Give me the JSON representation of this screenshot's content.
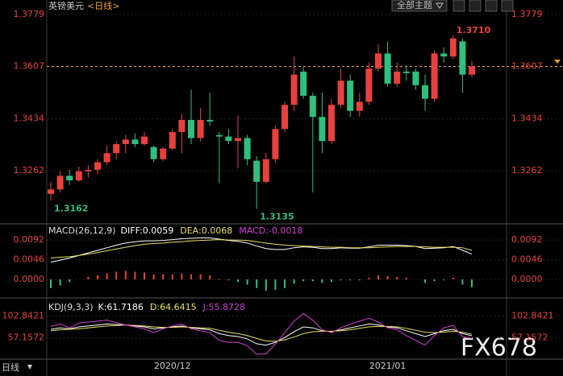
{
  "toolbar": {
    "theme_button": "全部主题",
    "period_tab": "日线"
  },
  "watermark": "FX678",
  "chart_data": [
    {
      "type": "candlestick",
      "title": "英镑美元",
      "subtitle": "<日线>",
      "categories": [
        null,
        null,
        null,
        null,
        null,
        null,
        null,
        null,
        null,
        null,
        null,
        null,
        null,
        "2020/12",
        null,
        null,
        null,
        null,
        null,
        null,
        null,
        null,
        null,
        null,
        null,
        null,
        null,
        null,
        null,
        null,
        null,
        null,
        null,
        null,
        null,
        null,
        "2021/01",
        null,
        null,
        null,
        null,
        null,
        null,
        null,
        null,
        null
      ],
      "open": [
        1.3185,
        1.32,
        1.3245,
        1.323,
        1.326,
        1.3265,
        1.329,
        1.332,
        1.335,
        1.3365,
        1.335,
        1.334,
        1.33,
        1.3335,
        1.339,
        1.343,
        1.337,
        1.343,
        1.338,
        1.3375,
        1.336,
        1.337,
        1.3295,
        1.3225,
        1.33,
        1.34,
        1.348,
        1.359,
        1.351,
        1.344,
        1.336,
        1.348,
        1.356,
        1.346,
        1.349,
        1.36,
        1.365,
        1.355,
        1.359,
        1.359,
        1.3545,
        1.35,
        1.365,
        1.364,
        1.369,
        1.358
      ],
      "high": [
        1.3225,
        1.326,
        1.3265,
        1.3275,
        1.328,
        1.33,
        1.3345,
        1.336,
        1.338,
        1.3385,
        1.339,
        1.3345,
        1.334,
        1.34,
        1.345,
        1.353,
        1.347,
        1.352,
        1.339,
        1.34,
        1.3445,
        1.338,
        1.331,
        1.332,
        1.341,
        1.349,
        1.364,
        1.3605,
        1.352,
        1.352,
        1.35,
        1.36,
        1.358,
        1.352,
        1.362,
        1.368,
        1.369,
        1.362,
        1.361,
        1.36,
        1.358,
        1.366,
        1.367,
        1.371,
        1.37,
        1.3625
      ],
      "low": [
        1.3162,
        1.319,
        1.3215,
        1.3225,
        1.324,
        1.325,
        1.328,
        1.33,
        1.332,
        1.334,
        1.3345,
        1.329,
        1.3295,
        1.333,
        1.332,
        1.335,
        1.336,
        1.341,
        1.322,
        1.335,
        1.327,
        1.328,
        1.3135,
        1.322,
        1.329,
        1.339,
        1.346,
        1.35,
        1.319,
        1.332,
        1.335,
        1.347,
        1.344,
        1.344,
        1.348,
        1.359,
        1.354,
        1.354,
        1.356,
        1.353,
        1.346,
        1.349,
        1.362,
        1.363,
        1.352,
        1.357
      ],
      "close": [
        1.32,
        1.3245,
        1.323,
        1.326,
        1.3265,
        1.329,
        1.332,
        1.335,
        1.3365,
        1.335,
        1.3375,
        1.33,
        1.3335,
        1.339,
        1.343,
        1.337,
        1.343,
        1.3425,
        1.3375,
        1.336,
        1.337,
        1.33,
        1.3225,
        1.33,
        1.34,
        1.348,
        1.358,
        1.351,
        1.344,
        1.336,
        1.348,
        1.356,
        1.346,
        1.349,
        1.36,
        1.365,
        1.355,
        1.359,
        1.3585,
        1.3545,
        1.35,
        1.365,
        1.364,
        1.37,
        1.358,
        1.3607
      ],
      "up_color": "#e8413d",
      "down_color": "#2fbf7f",
      "annotations": [
        {
          "value": 1.371,
          "label": "1.3710"
        },
        {
          "value": 1.3162,
          "label": "1.3162"
        },
        {
          "value": 1.3135,
          "label": "1.3135"
        }
      ],
      "ylim": [
        1.3086,
        1.3827
      ],
      "yticks": [
        1.3779,
        1.3607,
        1.3434,
        1.3262
      ],
      "grid": true
    },
    {
      "type": "combo",
      "title": "MACD(26,12,9)",
      "series": [
        {
          "name": "DIFF:0.0059",
          "type": "line",
          "color": "#ffffff",
          "values": [
            0.004,
            0.0045,
            0.005,
            0.0056,
            0.0062,
            0.0068,
            0.0074,
            0.008,
            0.0085,
            0.0088,
            0.009,
            0.009,
            0.0091,
            0.0093,
            0.0095,
            0.0096,
            0.0097,
            0.0097,
            0.0094,
            0.0091,
            0.0089,
            0.0085,
            0.0078,
            0.0072,
            0.007,
            0.007,
            0.0074,
            0.0076,
            0.0075,
            0.0072,
            0.0072,
            0.0074,
            0.0073,
            0.0073,
            0.0076,
            0.008,
            0.008,
            0.008,
            0.0079,
            0.0077,
            0.0072,
            0.0073,
            0.0074,
            0.0077,
            0.0068,
            0.0059
          ]
        },
        {
          "name": "DEA:0.0068",
          "type": "line",
          "color": "#e8e060",
          "values": [
            0.005,
            0.0052,
            0.0053,
            0.0056,
            0.0059,
            0.0063,
            0.0067,
            0.0071,
            0.0075,
            0.0079,
            0.0082,
            0.0084,
            0.0085,
            0.0087,
            0.0088,
            0.009,
            0.0091,
            0.0092,
            0.0093,
            0.0092,
            0.0092,
            0.0091,
            0.0088,
            0.0085,
            0.0082,
            0.008,
            0.0079,
            0.0078,
            0.0077,
            0.0076,
            0.0075,
            0.0075,
            0.0074,
            0.0074,
            0.0074,
            0.0075,
            0.0076,
            0.0077,
            0.0077,
            0.0077,
            0.0076,
            0.0075,
            0.0075,
            0.0075,
            0.0074,
            0.0068
          ]
        },
        {
          "name": "MACD:-0.0018",
          "type": "bar",
          "color": "#d040d0",
          "values": [
            -0.002,
            -0.0014,
            -0.0006,
            0,
            0.0006,
            0.001,
            0.0014,
            0.0018,
            0.002,
            0.0018,
            0.0016,
            0.0012,
            0.0012,
            0.0012,
            0.0014,
            0.0012,
            0.0012,
            0.001,
            0.0002,
            -0.0002,
            -0.0006,
            -0.0012,
            -0.002,
            -0.0026,
            -0.0024,
            -0.002,
            -0.001,
            -0.0004,
            -0.0004,
            -0.0008,
            -0.0006,
            -0.0002,
            -0.0002,
            -0.0002,
            0.0004,
            0.001,
            0.0008,
            0.0006,
            0.0004,
            0,
            -0.0008,
            -0.0004,
            -0.0002,
            0.0004,
            -0.0012,
            -0.0018
          ]
        }
      ],
      "up_color": "#e8413d",
      "down_color": "#2fbf7f",
      "ylim": [
        -0.0043,
        0.0126
      ],
      "yticks": [
        0.0092,
        0.0046,
        {
          "value": 0,
          "label": "0.0000"
        }
      ],
      "grid": true
    },
    {
      "type": "line",
      "title": "KDJ(9,3,3)",
      "series": [
        {
          "name": "K:61.7186",
          "color": "#ffffff",
          "values": [
            75,
            78,
            76,
            80,
            82,
            84,
            86,
            85,
            84,
            82,
            80,
            76,
            78,
            80,
            82,
            78,
            76,
            74,
            66,
            62,
            60,
            55,
            45,
            42,
            48,
            58,
            70,
            80,
            78,
            72,
            70,
            74,
            78,
            82,
            86,
            84,
            80,
            78,
            72,
            66,
            60,
            66,
            72,
            75,
            66,
            61.7186
          ]
        },
        {
          "name": "D:64.6415",
          "color": "#e8e060",
          "values": [
            72,
            74,
            75,
            76,
            78,
            80,
            82,
            83,
            84,
            83,
            82,
            80,
            79,
            79,
            80,
            79,
            78,
            77,
            73,
            69,
            66,
            62,
            56,
            51,
            50,
            53,
            59,
            66,
            70,
            71,
            71,
            72,
            74,
            77,
            80,
            81,
            81,
            80,
            77,
            73,
            69,
            68,
            69,
            71,
            69,
            64.6415
          ]
        },
        {
          "name": "J:55.8728",
          "color": "#d040d0",
          "values": [
            81,
            86,
            78,
            88,
            90,
            92,
            94,
            89,
            84,
            80,
            76,
            68,
            76,
            82,
            86,
            76,
            72,
            68,
            52,
            48,
            48,
            41,
            23,
            24,
            44,
            68,
            92,
            108,
            94,
            74,
            68,
            78,
            86,
            92,
            98,
            90,
            78,
            74,
            62,
            52,
            42,
            62,
            78,
            83,
            60,
            55.8728
          ]
        }
      ],
      "ylim": [
        13,
        137
      ],
      "yticks": [
        102.8421,
        57.1572
      ],
      "grid": true
    }
  ]
}
